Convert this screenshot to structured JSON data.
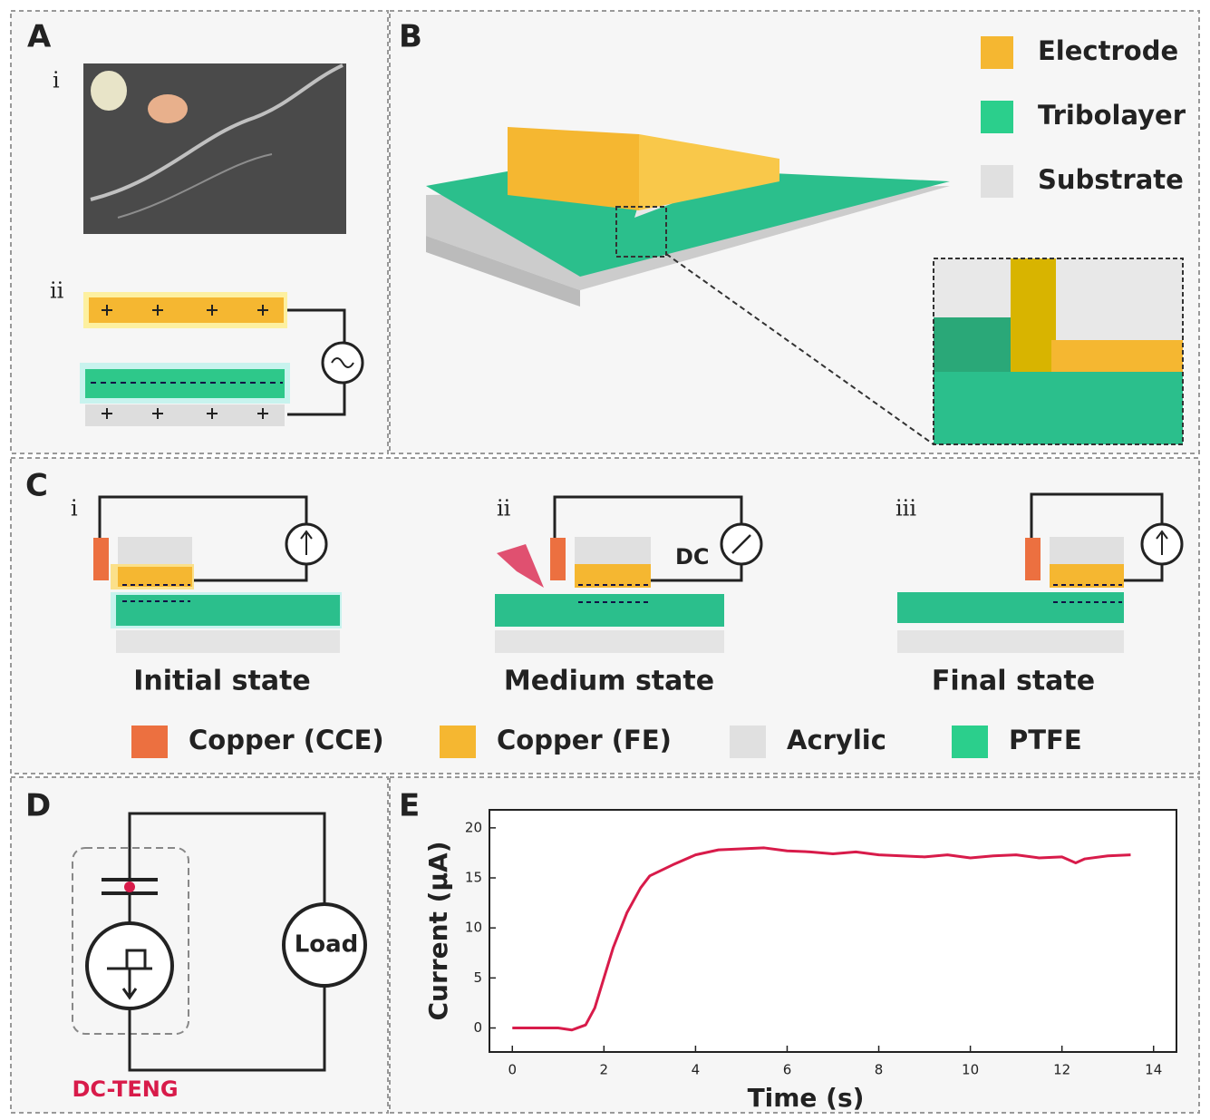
{
  "panels": {
    "a": {
      "label": "A",
      "sub": [
        "i",
        "ii"
      ]
    },
    "b": {
      "label": "B",
      "legend": [
        {
          "name": "Electrode",
          "color": "#f5b731"
        },
        {
          "name": "Tribolayer",
          "color": "#2bcf8c"
        },
        {
          "name": "Substrate",
          "color": "#e0e0e0"
        }
      ]
    },
    "c": {
      "label": "C",
      "sub": [
        "i",
        "ii",
        "iii"
      ],
      "meter_label": "DC",
      "states": [
        "Initial state",
        "Medium state",
        "Final state"
      ],
      "legend": [
        {
          "name": "Copper (CCE)",
          "color": "#ec7040"
        },
        {
          "name": "Copper (FE)",
          "color": "#f5b731"
        },
        {
          "name": "Acrylic",
          "color": "#e0e0e0"
        },
        {
          "name": "PTFE",
          "color": "#2bcf8c"
        }
      ]
    },
    "d": {
      "label": "D",
      "load": "Load",
      "caption": "DC-TENG"
    },
    "e": {
      "label": "E"
    }
  },
  "chart_data": {
    "type": "line",
    "x_label": "Time (s)",
    "y_label": "Current (μA)",
    "color": "#d81b4a",
    "x": [
      0,
      0.5,
      1,
      1.3,
      1.6,
      1.8,
      2,
      2.2,
      2.5,
      2.8,
      3,
      3.5,
      4,
      4.5,
      5,
      5.5,
      6,
      6.5,
      7,
      7.5,
      8,
      8.5,
      9,
      9.5,
      10,
      10.5,
      11,
      11.5,
      12,
      12.3,
      12.5,
      13,
      13.5
    ],
    "values": [
      0,
      0,
      0,
      -0.2,
      0.3,
      2,
      5,
      8,
      11.5,
      14,
      15.2,
      16.3,
      17.3,
      17.8,
      17.9,
      18,
      17.7,
      17.6,
      17.4,
      17.6,
      17.3,
      17.2,
      17.1,
      17.3,
      17,
      17.2,
      17.3,
      17,
      17.1,
      16.5,
      16.9,
      17.2,
      17.3
    ],
    "xlim": [
      -0.5,
      14.5
    ],
    "ylim": [
      -2.4,
      21.8
    ],
    "xticks": [
      0,
      2,
      4,
      6,
      8,
      10,
      12,
      14
    ],
    "yticks": [
      0,
      5,
      10,
      15,
      20
    ]
  }
}
